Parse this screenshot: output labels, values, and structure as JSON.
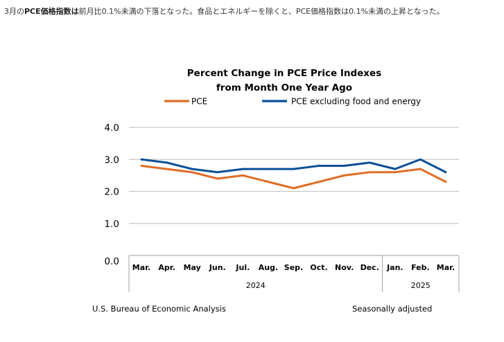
{
  "intro": {
    "part1": "3月の",
    "bold1": "PCE価格指数は",
    "part2": "前月比0.1%未満の下落となった。食品とエネルギーを除くと、PCE価格指数は0.1%未満の上昇となった。"
  },
  "footer": {
    "source": "U.S. Bureau of Economic Analysis",
    "note": "Seasonally adjusted"
  },
  "colors": {
    "pce": "#e06d26",
    "core": "#0a4f96",
    "grid": "#c8c8c8",
    "axis": "#b0b0b0"
  },
  "chart_data": {
    "type": "line",
    "title": [
      "Percent Change in PCE Price Indexes",
      "from Month One Year Ago"
    ],
    "categories": [
      "Mar.",
      "Apr.",
      "May",
      "Jun.",
      "Jul.",
      "Aug.",
      "Sep.",
      "Oct.",
      "Nov.",
      "Dec.",
      "Jan.",
      "Feb.",
      "Mar."
    ],
    "year_groups": [
      {
        "label": "2024",
        "start": 0,
        "end": 9
      },
      {
        "label": "2025",
        "start": 10,
        "end": 12
      }
    ],
    "series": [
      {
        "name": "PCE",
        "color_key": "pce",
        "values": [
          2.8,
          2.7,
          2.6,
          2.4,
          2.5,
          2.3,
          2.1,
          2.3,
          2.5,
          2.6,
          2.6,
          2.7,
          2.3
        ]
      },
      {
        "name": "PCE excluding food and energy",
        "color_key": "core",
        "values": [
          3.0,
          2.9,
          2.7,
          2.6,
          2.7,
          2.7,
          2.7,
          2.8,
          2.8,
          2.9,
          2.7,
          3.0,
          2.6
        ]
      }
    ],
    "yticks": [
      "0.0",
      "1.0",
      "2.0",
      "3.0",
      "4.0"
    ],
    "ylim": [
      0,
      4
    ],
    "grid": true,
    "legend": "top"
  }
}
